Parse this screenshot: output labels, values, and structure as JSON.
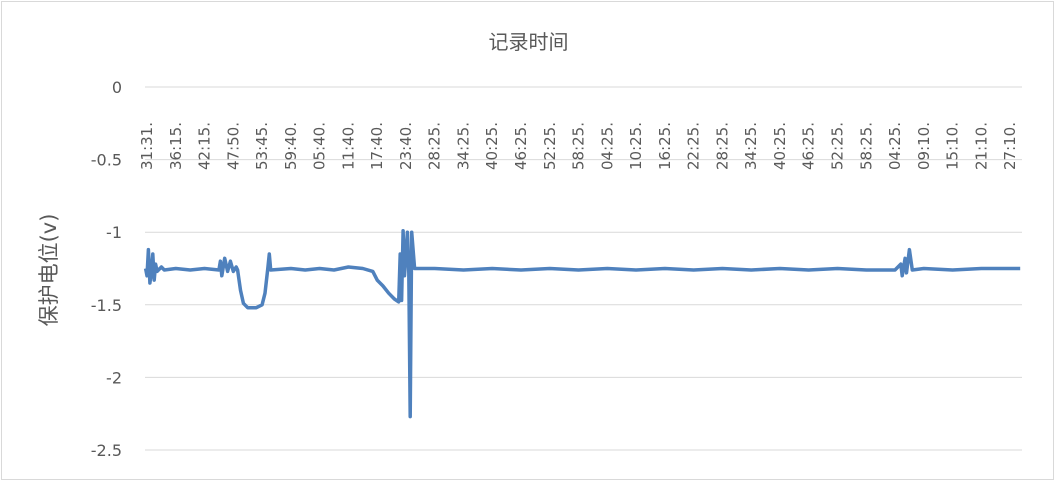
{
  "chart_data": {
    "type": "line",
    "title": "记录时间",
    "xlabel": "",
    "ylabel": "保护电位(v)",
    "ylim": [
      -2.5,
      0
    ],
    "yticks": [
      0,
      -0.5,
      -1,
      -1.5,
      -2,
      -2.5
    ],
    "ytick_labels": [
      "0",
      "-0.5",
      "-1",
      "-1.5",
      "-2",
      "-2.5"
    ],
    "x_axis_position": "top",
    "grid": true,
    "legend": "none",
    "line_color": "#4f81bd",
    "categories": [
      "31:31.",
      "36:15.",
      "42:15.",
      "47:50.",
      "53:45.",
      "59:40.",
      "05:40.",
      "11:40.",
      "17:40.",
      "23:40.",
      "28:25.",
      "34:25.",
      "40:25.",
      "46:25.",
      "52:25.",
      "58:25.",
      "04:25.",
      "10:25.",
      "16:25.",
      "22:25.",
      "28:25.",
      "34:25.",
      "40:25.",
      "46:25.",
      "52:25.",
      "58:25.",
      "04:25.",
      "09:10.",
      "15:10.",
      "21:10.",
      "27:10."
    ],
    "series": [
      {
        "points": [
          [
            -0.05,
            -1.25
          ],
          [
            0,
            -1.3
          ],
          [
            0.05,
            -1.12
          ],
          [
            0.1,
            -1.35
          ],
          [
            0.15,
            -1.28
          ],
          [
            0.2,
            -1.15
          ],
          [
            0.25,
            -1.33
          ],
          [
            0.3,
            -1.22
          ],
          [
            0.35,
            -1.27
          ],
          [
            0.5,
            -1.24
          ],
          [
            0.6,
            -1.26
          ],
          [
            1,
            -1.25
          ],
          [
            1.5,
            -1.26
          ],
          [
            2,
            -1.25
          ],
          [
            2.5,
            -1.26
          ],
          [
            2.55,
            -1.2
          ],
          [
            2.6,
            -1.3
          ],
          [
            2.7,
            -1.18
          ],
          [
            2.8,
            -1.27
          ],
          [
            2.9,
            -1.2
          ],
          [
            3,
            -1.27
          ],
          [
            3.1,
            -1.24
          ],
          [
            3.15,
            -1.26
          ],
          [
            3.25,
            -1.4
          ],
          [
            3.35,
            -1.49
          ],
          [
            3.5,
            -1.52
          ],
          [
            3.8,
            -1.52
          ],
          [
            4,
            -1.5
          ],
          [
            4.1,
            -1.42
          ],
          [
            4.2,
            -1.25
          ],
          [
            4.25,
            -1.15
          ],
          [
            4.3,
            -1.26
          ],
          [
            5,
            -1.25
          ],
          [
            5.5,
            -1.26
          ],
          [
            6,
            -1.25
          ],
          [
            6.5,
            -1.26
          ],
          [
            7,
            -1.24
          ],
          [
            7.5,
            -1.25
          ],
          [
            7.85,
            -1.27
          ],
          [
            8,
            -1.33
          ],
          [
            8.2,
            -1.37
          ],
          [
            8.4,
            -1.42
          ],
          [
            8.6,
            -1.46
          ],
          [
            8.75,
            -1.48
          ],
          [
            8.8,
            -1.15
          ],
          [
            8.85,
            -1.47
          ],
          [
            8.9,
            -0.99
          ],
          [
            8.95,
            -1.3
          ],
          [
            9.05,
            -1
          ],
          [
            9.1,
            -1.28
          ],
          [
            9.15,
            -2.27
          ],
          [
            9.2,
            -1
          ],
          [
            9.3,
            -1.25
          ],
          [
            10,
            -1.25
          ],
          [
            11,
            -1.26
          ],
          [
            12,
            -1.25
          ],
          [
            13,
            -1.26
          ],
          [
            14,
            -1.25
          ],
          [
            15,
            -1.26
          ],
          [
            16,
            -1.25
          ],
          [
            17,
            -1.26
          ],
          [
            18,
            -1.25
          ],
          [
            19,
            -1.26
          ],
          [
            20,
            -1.25
          ],
          [
            21,
            -1.26
          ],
          [
            22,
            -1.25
          ],
          [
            23,
            -1.26
          ],
          [
            24,
            -1.25
          ],
          [
            25,
            -1.26
          ],
          [
            26,
            -1.26
          ],
          [
            26.2,
            -1.22
          ],
          [
            26.25,
            -1.3
          ],
          [
            26.35,
            -1.18
          ],
          [
            26.4,
            -1.28
          ],
          [
            26.5,
            -1.12
          ],
          [
            26.6,
            -1.26
          ],
          [
            27,
            -1.25
          ],
          [
            28,
            -1.26
          ],
          [
            29,
            -1.25
          ],
          [
            30.35,
            -1.25
          ]
        ]
      }
    ]
  }
}
